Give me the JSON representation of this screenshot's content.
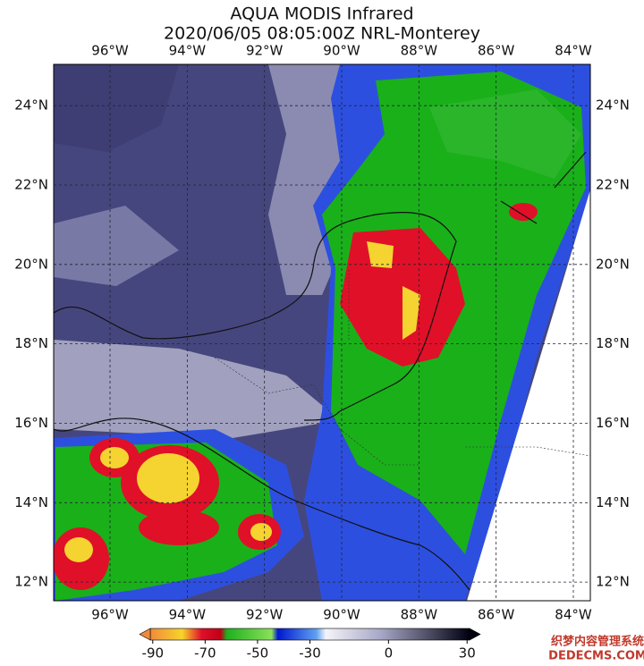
{
  "title": "AQUA MODIS Infrared",
  "subtitle": "2020/06/05 08:05:00Z NRL-Monterey",
  "map": {
    "xlim": [
      -97.46,
      -83.56
    ],
    "ylim": [
      11.53,
      25.04
    ],
    "xticks": [
      {
        "value": -96,
        "label": "96°W"
      },
      {
        "value": -94,
        "label": "94°W"
      },
      {
        "value": -92,
        "label": "92°W"
      },
      {
        "value": -90,
        "label": "90°W"
      },
      {
        "value": -88,
        "label": "88°W"
      },
      {
        "value": -86,
        "label": "86°W"
      },
      {
        "value": -84,
        "label": "84°W"
      }
    ],
    "yticks": [
      {
        "value": 24,
        "label": "24°N"
      },
      {
        "value": 22,
        "label": "22°N"
      },
      {
        "value": 20,
        "label": "20°N"
      },
      {
        "value": 18,
        "label": "18°N"
      },
      {
        "value": 16,
        "label": "16°N"
      },
      {
        "value": 14,
        "label": "14°N"
      },
      {
        "value": 12,
        "label": "12°N"
      }
    ]
  },
  "colorbar": {
    "lim": [
      -93,
      33
    ],
    "ticks": [
      -90,
      -70,
      -50,
      -30,
      0,
      30
    ]
  },
  "watermark": [
    "织梦内容管理系统",
    "DEDECMS.COM"
  ]
}
